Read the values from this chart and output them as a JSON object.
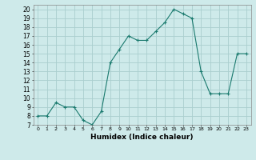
{
  "x": [
    0,
    1,
    2,
    3,
    4,
    5,
    6,
    7,
    8,
    9,
    10,
    11,
    12,
    13,
    14,
    15,
    16,
    17,
    18,
    19,
    20,
    21,
    22,
    23
  ],
  "y": [
    8,
    8,
    9.5,
    9,
    9,
    7.5,
    7,
    8.5,
    14,
    15.5,
    17,
    16.5,
    16.5,
    17.5,
    18.5,
    20,
    19.5,
    19,
    13,
    10.5,
    10.5,
    10.5,
    15,
    15
  ],
  "xlabel": "Humidex (Indice chaleur)",
  "xlim": [
    -0.5,
    23.5
  ],
  "ylim": [
    7,
    20.5
  ],
  "yticks": [
    7,
    8,
    9,
    10,
    11,
    12,
    13,
    14,
    15,
    16,
    17,
    18,
    19,
    20
  ],
  "xticks": [
    0,
    1,
    2,
    3,
    4,
    5,
    6,
    7,
    8,
    9,
    10,
    11,
    12,
    13,
    14,
    15,
    16,
    17,
    18,
    19,
    20,
    21,
    22,
    23
  ],
  "line_color": "#1a7a6e",
  "marker": "+",
  "bg_color": "#ceeaea",
  "grid_color": "#aacece"
}
